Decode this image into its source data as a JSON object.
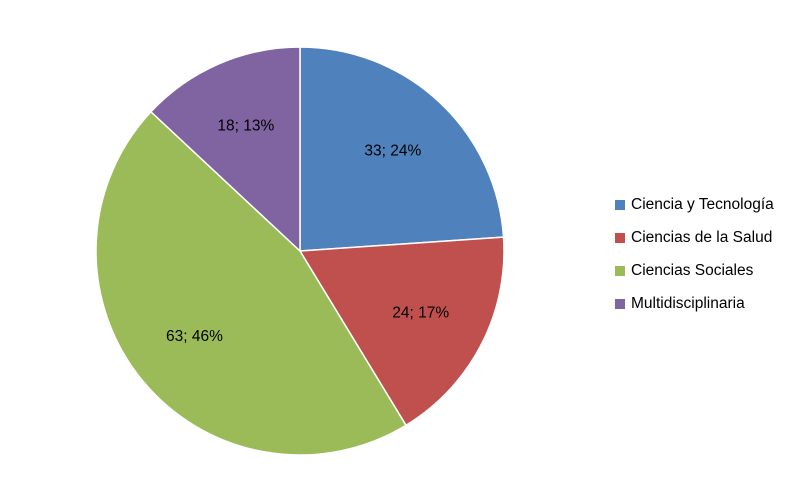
{
  "chart_data": {
    "type": "pie",
    "categories": [
      "Ciencia y Tecnología",
      "Ciencias de la Salud",
      "Ciencias Sociales",
      "Multidisciplinaria"
    ],
    "values": [
      33,
      24,
      63,
      18
    ],
    "percentages": [
      24,
      17,
      46,
      13
    ],
    "data_labels": [
      "33; 24%",
      "24; 17%",
      "63; 46%",
      "18; 13%"
    ],
    "colors": [
      "#4F81BD",
      "#C0504D",
      "#9BBB59",
      "#8064A2"
    ],
    "legend_position": "right",
    "start_angle": "12 o'clock",
    "direction": "clockwise"
  },
  "legend": {
    "items": [
      {
        "label": "Ciencia y Tecnología",
        "color": "#4F81BD"
      },
      {
        "label": "Ciencias de la Salud",
        "color": "#C0504D"
      },
      {
        "label": "Ciencias Sociales",
        "color": "#9BBB59"
      },
      {
        "label": "Multidisciplinaria",
        "color": "#8064A2"
      }
    ]
  }
}
